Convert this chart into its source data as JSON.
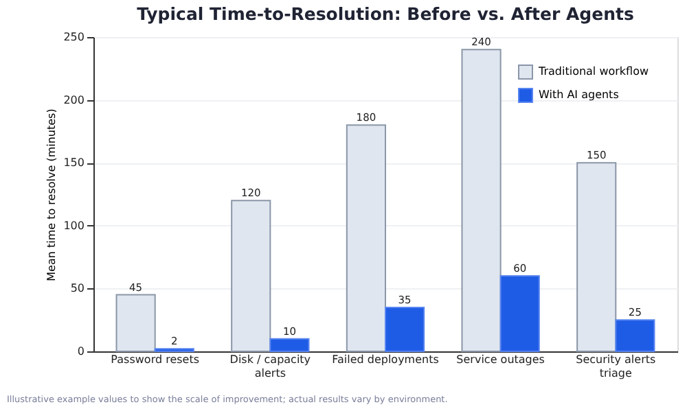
{
  "chart_data": {
    "type": "bar",
    "title": "Typical Time-to-Resolution: Before vs. After Agents",
    "ylabel": "Mean time to resolve (minutes)",
    "categories": [
      "Password resets",
      "Disk / capacity alerts",
      "Failed deployments",
      "Service outages",
      "Security alerts triage"
    ],
    "series": [
      {
        "name": "Traditional workflow",
        "color": "#dfe6ef",
        "values": [
          45,
          120,
          180,
          240,
          150
        ]
      },
      {
        "name": "With AI agents",
        "color": "#1f5ce6",
        "values": [
          2,
          10,
          35,
          60,
          25
        ]
      }
    ],
    "ylim": [
      0,
      250
    ],
    "yticks": [
      0,
      50,
      100,
      150,
      200,
      250
    ],
    "grid": "y",
    "legend": "top right",
    "data_labels": true,
    "annotations": [
      "Illustrative example values to show the scale of improvement; actual results vary by environment."
    ]
  }
}
